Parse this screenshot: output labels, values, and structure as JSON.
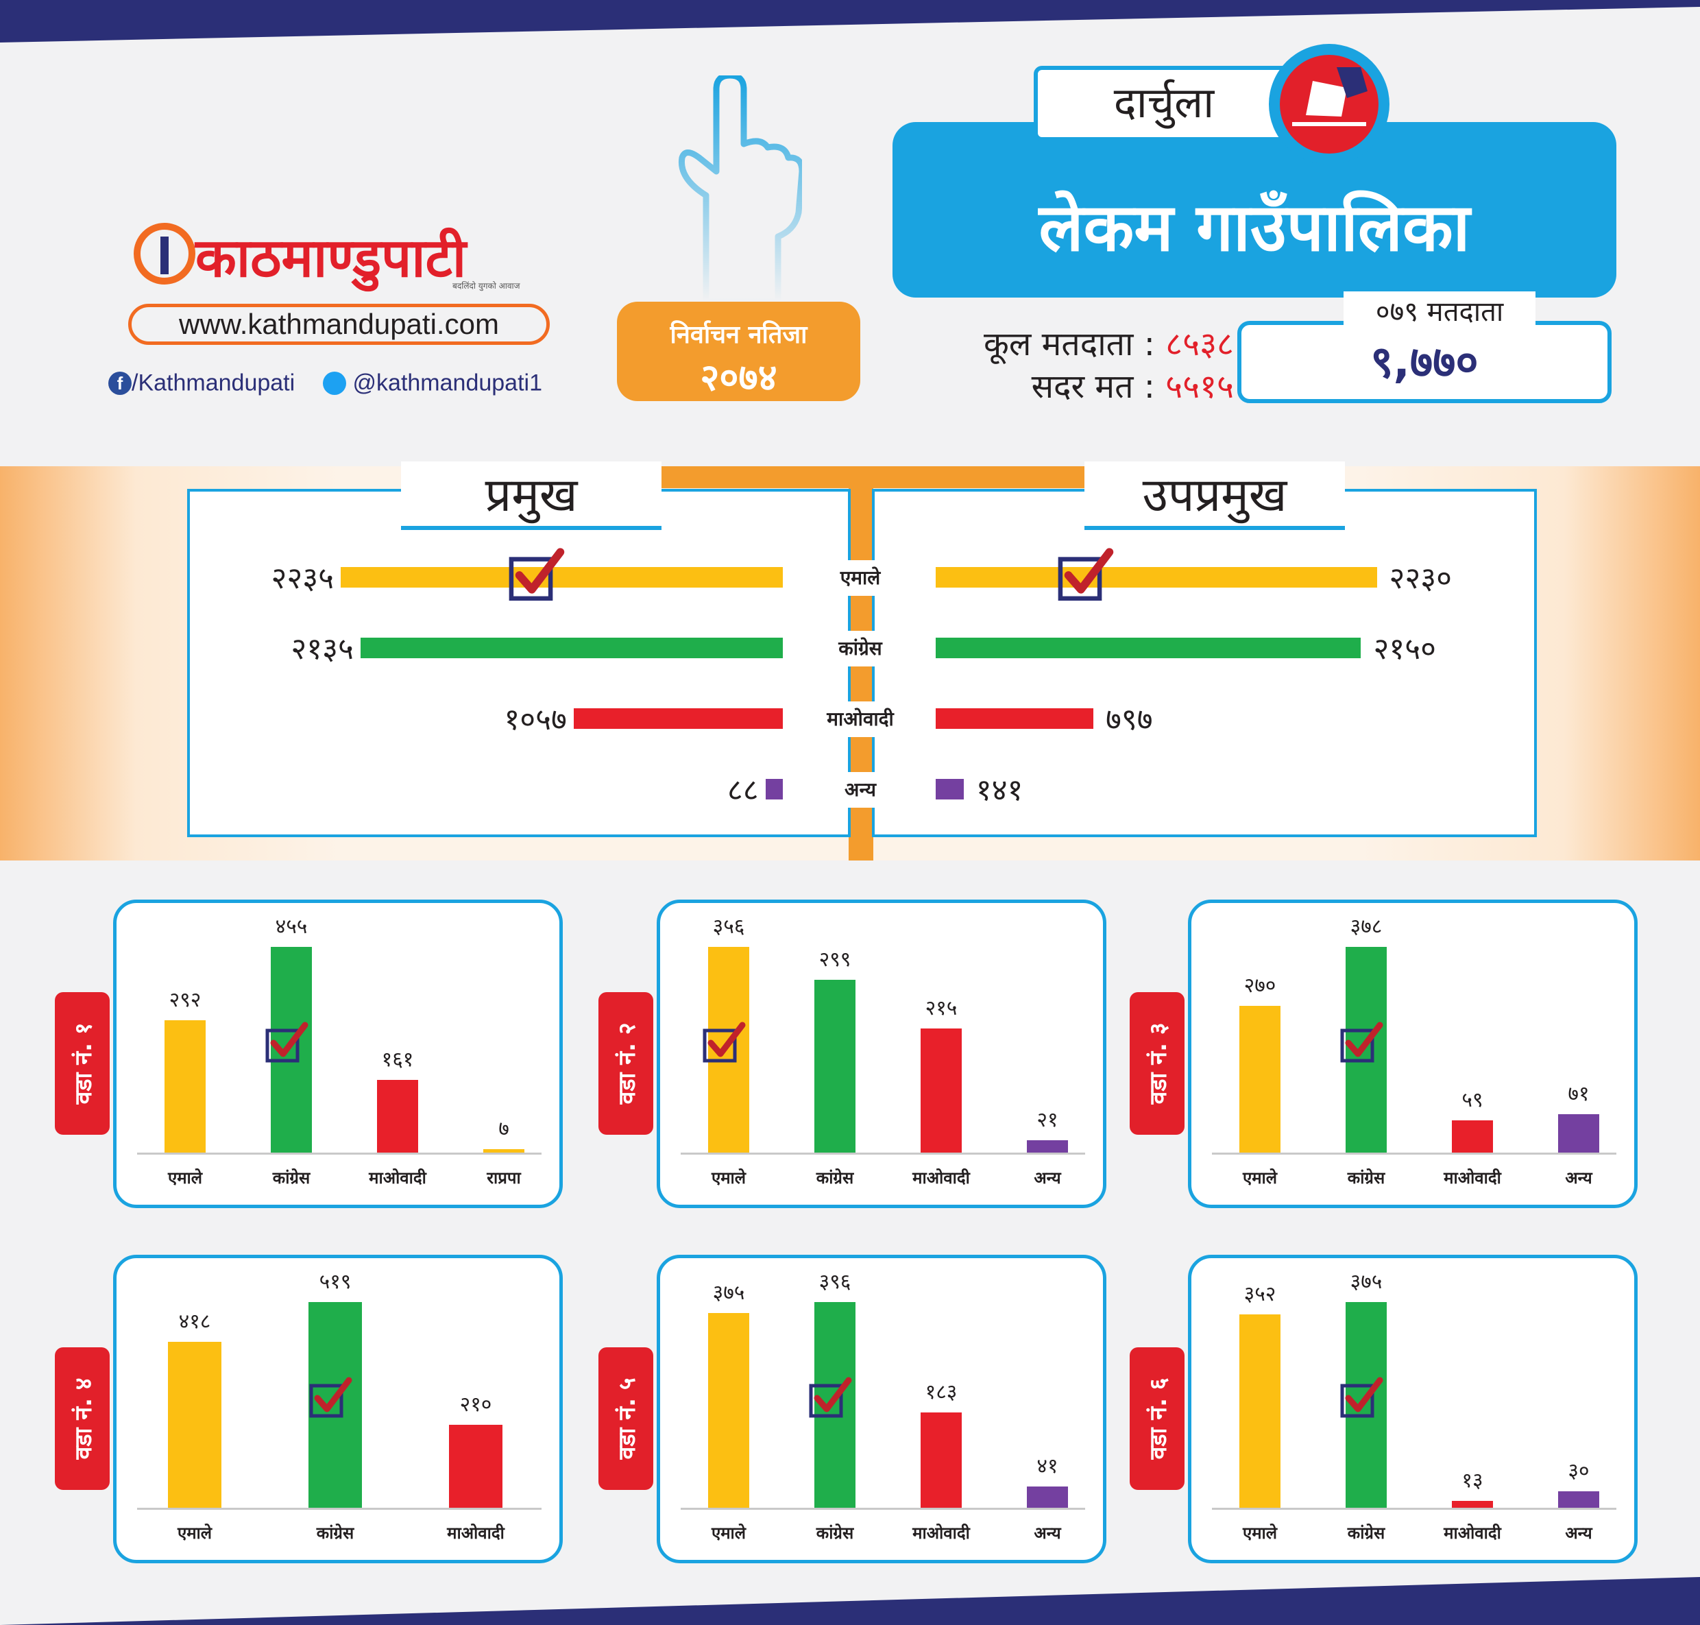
{
  "brand": {
    "name": "काठमाण्डुपाटी",
    "tagline": "बदलिंदो युगको आवाज",
    "website": "www.kathmandupati.com",
    "facebook": "/Kathmandupati",
    "twitter": "@kathmandupati1"
  },
  "badge": {
    "line1": "निर्वाचन नतिजा",
    "line2": "२०७४"
  },
  "header": {
    "district": "दार्चुला",
    "municipality": "लेकम गाउँपालिका",
    "total_voters_label": "कूल मतदाता :",
    "total_voters_value": "८५३८",
    "valid_votes_label": "सदर मत :",
    "valid_votes_value": "५५१५",
    "voters_079_label": "०७९ मतदाता",
    "voters_079_value": "९,७७०"
  },
  "colors": {
    "yellow": "#fcbf12",
    "green": "#1fae4b",
    "red": "#e8202a",
    "purple": "#7440a0",
    "blue": "#1aa3e0",
    "orange": "#f39c2d"
  },
  "chart_data": [
    {
      "type": "bar",
      "title": "प्रमुख",
      "categories": [
        "एमाले",
        "कांग्रेस",
        "माओवादी",
        "अन्य"
      ],
      "values": [
        2235,
        2135,
        1057,
        88
      ],
      "value_labels": [
        "२२३५",
        "२१३५",
        "१०५७",
        "८८"
      ],
      "winner": "एमाले"
    },
    {
      "type": "bar",
      "title": "उपप्रमुख",
      "categories": [
        "एमाले",
        "कांग्रेस",
        "माओवादी",
        "अन्य"
      ],
      "values": [
        2230,
        2150,
        797,
        141
      ],
      "value_labels": [
        "२२३०",
        "२१५०",
        "७९७",
        "१४१"
      ],
      "winner": "एमाले"
    },
    {
      "type": "bar",
      "title": "वडा नं. १",
      "categories": [
        "एमाले",
        "कांग्रेस",
        "माओवादी",
        "राप्रपा"
      ],
      "values": [
        292,
        455,
        161,
        7
      ],
      "value_labels": [
        "२९२",
        "४५५",
        "१६१",
        "७"
      ],
      "winner": "कांग्रेस"
    },
    {
      "type": "bar",
      "title": "वडा नं. २",
      "categories": [
        "एमाले",
        "कांग्रेस",
        "माओवादी",
        "अन्य"
      ],
      "values": [
        356,
        299,
        215,
        21
      ],
      "value_labels": [
        "३५६",
        "२९९",
        "२१५",
        "२१"
      ],
      "winner": "एमाले"
    },
    {
      "type": "bar",
      "title": "वडा नं. ३",
      "categories": [
        "एमाले",
        "कांग्रेस",
        "माओवादी",
        "अन्य"
      ],
      "values": [
        270,
        378,
        59,
        71
      ],
      "value_labels": [
        "२७०",
        "३७८",
        "५९",
        "७१"
      ],
      "winner": "कांग्रेस"
    },
    {
      "type": "bar",
      "title": "वडा नं. ४",
      "categories": [
        "एमाले",
        "कांग्रेस",
        "माओवादी"
      ],
      "values": [
        418,
        519,
        210
      ],
      "value_labels": [
        "४१८",
        "५१९",
        "२१०"
      ],
      "winner": "कांग्रेस"
    },
    {
      "type": "bar",
      "title": "वडा नं. ५",
      "categories": [
        "एमाले",
        "कांग्रेस",
        "माओवादी",
        "अन्य"
      ],
      "values": [
        375,
        396,
        183,
        41
      ],
      "value_labels": [
        "३७५",
        "३९६",
        "१८३",
        "४१"
      ],
      "winner": "कांग्रेस"
    },
    {
      "type": "bar",
      "title": "वडा नं. ६",
      "categories": [
        "एमाले",
        "कांग्रेस",
        "माओवादी",
        "अन्य"
      ],
      "values": [
        352,
        375,
        13,
        30
      ],
      "value_labels": [
        "३५२",
        "३७५",
        "१३",
        "३०"
      ],
      "winner": "कांग्रेस"
    }
  ]
}
